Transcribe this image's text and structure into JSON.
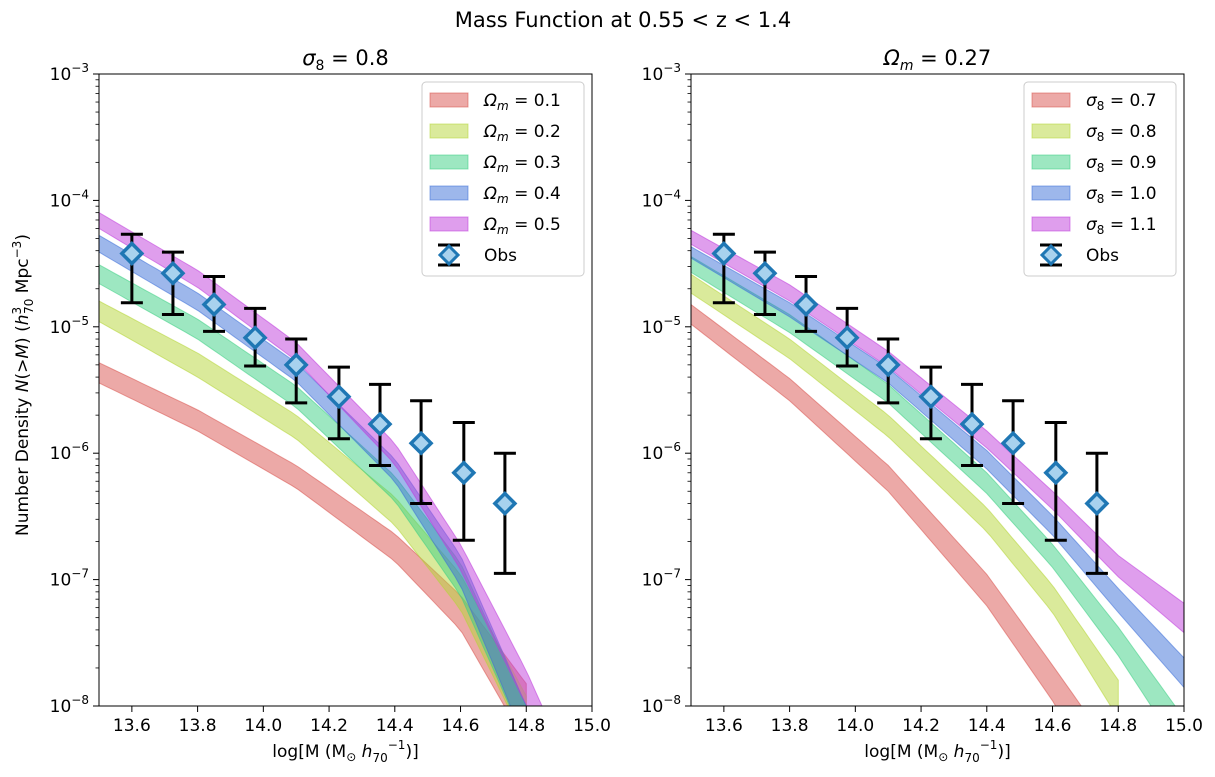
{
  "figure": {
    "suptitle": "Mass Function at 0.55 < z < 1.4"
  },
  "chart_data": [
    {
      "type": "area",
      "title": "σ8 = 0.8",
      "xlabel": "log[M (M⊙ h70⁻¹)]",
      "ylabel": "Number Density N(>M) (h70³ Mpc⁻³)",
      "xlim": [
        13.5,
        15.0
      ],
      "ylim": [
        1e-08,
        0.001
      ],
      "yscale": "log",
      "legend_position": "top-right",
      "x_ticks": [
        "13.6",
        "13.8",
        "14.0",
        "14.2",
        "14.4",
        "14.6",
        "14.8",
        "15.0"
      ],
      "y_ticks": [
        {
          "base": "10",
          "exp": "−8",
          "value": 1e-08
        },
        {
          "base": "10",
          "exp": "−7",
          "value": 1e-07
        },
        {
          "base": "10",
          "exp": "−6",
          "value": 1e-06
        },
        {
          "base": "10",
          "exp": "−5",
          "value": 1e-05
        },
        {
          "base": "10",
          "exp": "−4",
          "value": 0.0001
        },
        {
          "base": "10",
          "exp": "−3",
          "value": 0.001
        }
      ],
      "bands": [
        {
          "name": "Ωm = 0.1",
          "label_sym": "Ω",
          "label_sub": "m",
          "label_val": " = 0.1",
          "color": "#d9534f",
          "x": [
            13.5,
            13.8,
            14.1,
            14.4,
            14.6,
            14.8
          ],
          "upper": [
            5.2e-06,
            2.2e-06,
            8e-07,
            2.3e-07,
            7.5e-08,
            1.5e-08
          ],
          "lower": [
            3.6e-06,
            1.5e-06,
            5.3e-07,
            1.4e-07,
            4e-08,
            5e-09
          ]
        },
        {
          "name": "Ωm = 0.2",
          "label_sym": "Ω",
          "label_sub": "m",
          "label_val": " = 0.2",
          "color": "#b5d637",
          "x": [
            13.5,
            13.8,
            14.1,
            14.4,
            14.6,
            14.8
          ],
          "upper": [
            1.6e-05,
            6.2e-06,
            2e-06,
            4.5e-07,
            1.1e-07,
            1.2e-08
          ],
          "lower": [
            1.1e-05,
            4e-06,
            1.3e-06,
            2.7e-07,
            5.8e-08,
            5e-09
          ]
        },
        {
          "name": "Ωm = 0.3",
          "label_sym": "Ω",
          "label_sub": "m",
          "label_val": " = 0.3",
          "color": "#3ccf84",
          "x": [
            13.5,
            13.8,
            14.1,
            14.4,
            14.6,
            14.8
          ],
          "upper": [
            3.1e-05,
            1.15e-05,
            3.4e-06,
            6.6e-07,
            1.35e-07,
            1e-08
          ],
          "lower": [
            2.2e-05,
            8e-06,
            2.3e-06,
            4.2e-07,
            7.5e-08,
            5e-09
          ]
        },
        {
          "name": "Ωm = 0.4",
          "label_sym": "Ω",
          "label_sub": "m",
          "label_val": " = 0.4",
          "color": "#3c6fd8",
          "x": [
            13.5,
            13.8,
            14.1,
            14.4,
            14.6,
            14.8
          ],
          "upper": [
            5.3e-05,
            1.85e-05,
            5.2e-06,
            9e-07,
            1.55e-07,
            1e-08
          ],
          "lower": [
            3.9e-05,
            1.35e-05,
            3.7e-06,
            6e-07,
            9e-08,
            5e-09
          ]
        },
        {
          "name": "Ωm = 0.5",
          "label_sym": "Ω",
          "label_sub": "m",
          "label_val": " = 0.5",
          "color": "#c03ddc",
          "x": [
            13.5,
            13.8,
            14.1,
            14.4,
            14.6,
            14.8,
            14.9
          ],
          "upper": [
            8e-05,
            2.8e-05,
            7.5e-06,
            1.2e-06,
            1.9e-07,
            1.9e-08,
            5e-09
          ],
          "lower": [
            6e-05,
            2.05e-05,
            5.4e-06,
            8.2e-07,
            1.2e-07,
            1e-08,
            5e-09
          ]
        }
      ],
      "observations": {
        "name": "Obs",
        "x": [
          13.6,
          13.725,
          13.85,
          13.975,
          14.1,
          14.23,
          14.355,
          14.48,
          14.61,
          14.735
        ],
        "y": [
          3.8e-05,
          2.65e-05,
          1.5e-05,
          8.2e-06,
          5e-06,
          2.8e-06,
          1.7e-06,
          1.2e-06,
          7e-07,
          4e-07
        ],
        "y_upper": [
          5.4e-05,
          3.9e-05,
          2.5e-05,
          1.4e-05,
          8e-06,
          4.8e-06,
          3.5e-06,
          2.6e-06,
          1.75e-06,
          1e-06
        ],
        "y_lower": [
          1.55e-05,
          1.25e-05,
          9.2e-06,
          4.9e-06,
          2.5e-06,
          1.3e-06,
          8e-07,
          4e-07,
          2.05e-07,
          1.12e-07
        ]
      }
    },
    {
      "type": "area",
      "title": "Ωm = 0.27",
      "xlabel": "log[M (M⊙ h70⁻¹)]",
      "ylabel": "",
      "xlim": [
        13.5,
        15.0
      ],
      "ylim": [
        1e-08,
        0.001
      ],
      "yscale": "log",
      "legend_position": "top-right",
      "x_ticks": [
        "13.6",
        "13.8",
        "14.0",
        "14.2",
        "14.4",
        "14.6",
        "14.8",
        "15.0"
      ],
      "y_ticks": [
        {
          "base": "10",
          "exp": "−8",
          "value": 1e-08
        },
        {
          "base": "10",
          "exp": "−7",
          "value": 1e-07
        },
        {
          "base": "10",
          "exp": "−6",
          "value": 1e-06
        },
        {
          "base": "10",
          "exp": "−5",
          "value": 1e-05
        },
        {
          "base": "10",
          "exp": "−4",
          "value": 0.0001
        },
        {
          "base": "10",
          "exp": "−3",
          "value": 0.001
        }
      ],
      "bands": [
        {
          "name": "σ8 = 0.7",
          "label_sym": "σ",
          "label_sub": "8",
          "label_val": " = 0.7",
          "color": "#d9534f",
          "x": [
            13.5,
            13.8,
            14.1,
            14.4,
            14.6,
            14.7
          ],
          "upper": [
            1.5e-05,
            3.9e-06,
            8e-07,
            1.1e-07,
            2.1e-08,
            9e-09
          ],
          "lower": [
            1.05e-05,
            2.6e-06,
            5e-07,
            6.2e-08,
            1.1e-08,
            4e-09
          ]
        },
        {
          "name": "σ8 = 0.8",
          "label_sym": "σ",
          "label_sub": "8",
          "label_val": " = 0.8",
          "color": "#b5d637",
          "x": [
            13.5,
            13.8,
            14.1,
            14.4,
            14.6,
            14.8
          ],
          "upper": [
            2.6e-05,
            8e-06,
            2e-06,
            3.7e-07,
            9e-08,
            1.6e-08
          ],
          "lower": [
            1.85e-05,
            5.6e-06,
            1.35e-06,
            2.4e-07,
            5.5e-08,
            8e-09
          ]
        },
        {
          "name": "σ8 = 0.9",
          "label_sym": "σ",
          "label_sub": "8",
          "label_val": " = 0.9",
          "color": "#3ccf84",
          "x": [
            13.5,
            13.8,
            14.1,
            14.4,
            14.6,
            14.8,
            15.0
          ],
          "upper": [
            3.6e-05,
            1.25e-05,
            3.5e-06,
            7e-07,
            1.9e-07,
            4.2e-08,
            8e-09
          ],
          "lower": [
            2.7e-05,
            9e-06,
            2.5e-06,
            4.8e-07,
            1.25e-07,
            2.5e-08,
            4e-09
          ]
        },
        {
          "name": "σ8 = 1.0",
          "label_sym": "σ",
          "label_sub": "8",
          "label_val": " = 1.0",
          "color": "#3c6fd8",
          "x": [
            13.5,
            13.8,
            14.1,
            14.4,
            14.6,
            14.8,
            15.0
          ],
          "upper": [
            4.3e-05,
            1.55e-05,
            4.7e-06,
            1.05e-06,
            3.2e-07,
            8.5e-08,
            2.4e-08
          ],
          "lower": [
            3.5e-05,
            1.2e-05,
            3.6e-06,
            7.5e-07,
            2.25e-07,
            5.5e-08,
            1.4e-08
          ]
        },
        {
          "name": "σ8 = 1.1",
          "label_sym": "σ",
          "label_sub": "8",
          "label_val": " = 1.1",
          "color": "#c03ddc",
          "x": [
            13.5,
            13.8,
            14.1,
            14.4,
            14.6,
            14.8,
            15.0
          ],
          "upper": [
            5.8e-05,
            2.15e-05,
            6.4e-06,
            1.5e-06,
            5e-07,
            1.55e-07,
            6.5e-08
          ],
          "lower": [
            4.5e-05,
            1.6e-05,
            4.8e-06,
            1.1e-06,
            3.6e-07,
            1.05e-07,
            3.8e-08
          ]
        }
      ],
      "observations": {
        "name": "Obs",
        "x": [
          13.6,
          13.725,
          13.85,
          13.975,
          14.1,
          14.23,
          14.355,
          14.48,
          14.61,
          14.735
        ],
        "y": [
          3.8e-05,
          2.65e-05,
          1.5e-05,
          8.2e-06,
          5e-06,
          2.8e-06,
          1.7e-06,
          1.2e-06,
          7e-07,
          4e-07
        ],
        "y_upper": [
          5.4e-05,
          3.9e-05,
          2.5e-05,
          1.4e-05,
          8e-06,
          4.8e-06,
          3.5e-06,
          2.6e-06,
          1.75e-06,
          1e-06
        ],
        "y_lower": [
          1.55e-05,
          1.25e-05,
          9.2e-06,
          4.9e-06,
          2.5e-06,
          1.3e-06,
          8e-07,
          4e-07,
          2.05e-07,
          1.12e-07
        ]
      }
    }
  ]
}
